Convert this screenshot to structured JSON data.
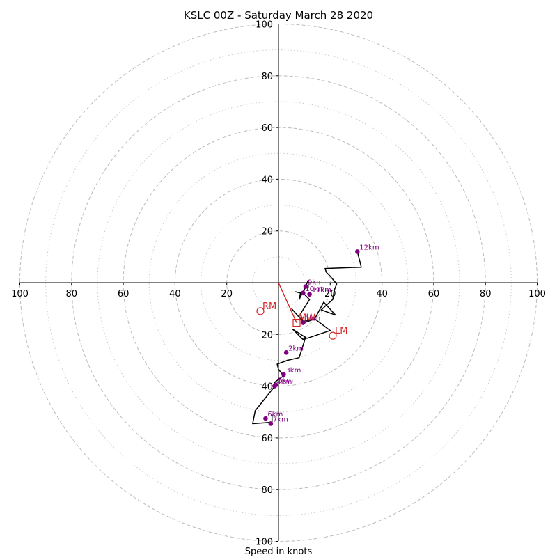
{
  "chart_data": {
    "type": "hodograph",
    "title": "KSLC 00Z - Saturday March 28 2020",
    "xlabel": "Speed in knots",
    "range": [
      -100,
      100
    ],
    "major_rings": [
      20,
      40,
      60,
      80,
      100
    ],
    "minor_rings": [
      10,
      30,
      50,
      70,
      90
    ],
    "tick_labels": [
      "100",
      "80",
      "60",
      "40",
      "20",
      "20",
      "40",
      "60",
      "80",
      "100"
    ],
    "y_tick_labels_upper": [
      "20",
      "40",
      "60",
      "80",
      "100"
    ],
    "y_tick_labels_lower": [
      "20",
      "40",
      "60",
      "80",
      "100"
    ],
    "colors": {
      "trace": "#000000",
      "height_markers": "#800080",
      "storm_motion": "#d62728",
      "major_ring": "#bbbbbb",
      "minor_ring": "#cccccc"
    },
    "wind_trace": [
      [
        6.5,
        -3.5
      ],
      [
        8.5,
        -4
      ],
      [
        8,
        -6.5
      ],
      [
        10.5,
        -1.5
      ],
      [
        11.5,
        -2
      ],
      [
        11.5,
        1
      ],
      [
        9.5,
        -4
      ],
      [
        12,
        -6.5
      ],
      [
        8.5,
        -12
      ],
      [
        9.5,
        -15
      ],
      [
        14,
        -14
      ],
      [
        17.5,
        -7.5
      ],
      [
        22,
        -12.5
      ],
      [
        16.5,
        -10.5
      ],
      [
        21,
        -6.5
      ],
      [
        21.5,
        -3
      ],
      [
        22.5,
        -0.5
      ],
      [
        20,
        2.5
      ],
      [
        18.5,
        4
      ],
      [
        18,
        5.5
      ],
      [
        32,
        6
      ],
      [
        30.5,
        12
      ]
    ],
    "wind_trace_low": [
      [
        5,
        -10
      ],
      [
        9.5,
        -15
      ],
      [
        10,
        -15.5
      ],
      [
        14,
        -14
      ],
      [
        20,
        -18.5
      ],
      [
        11,
        -21.5
      ],
      [
        5.5,
        -18
      ],
      [
        9.5,
        -22
      ],
      [
        10.5,
        -21
      ],
      [
        8,
        -29
      ],
      [
        3.5,
        -30
      ],
      [
        -0.5,
        -31.5
      ],
      [
        0,
        -33.5
      ],
      [
        2,
        -36
      ],
      [
        -1.5,
        -38.5
      ],
      [
        -1,
        -39.5
      ],
      [
        -9,
        -49.5
      ],
      [
        -10,
        -54.5
      ],
      [
        -3,
        -54
      ],
      [
        -2.5,
        -55
      ],
      [
        -2.5,
        -51
      ]
    ],
    "height_markers": [
      {
        "label": "12km",
        "u": 30.5,
        "v": 12
      },
      {
        "label": "9km",
        "u": 10.5,
        "v": -1.5
      },
      {
        "label": "10km",
        "u": 9.5,
        "v": -4
      },
      {
        "label": "11km",
        "u": 12,
        "v": -4.5
      },
      {
        "label": "1km",
        "u": 9.5,
        "v": -15.5
      },
      {
        "label": "2km",
        "u": 3,
        "v": -27
      },
      {
        "label": "3km",
        "u": 2,
        "v": -35.5
      },
      {
        "label": "5km",
        "u": -1,
        "v": -39.5
      },
      {
        "label": "4km",
        "u": -1.5,
        "v": -40
      },
      {
        "label": "6km",
        "u": -5,
        "v": -52.5
      },
      {
        "label": "7km",
        "u": -3,
        "v": -54.5
      }
    ],
    "storm_motion": [
      {
        "label": "RM",
        "u": -7,
        "v": -11,
        "marker": "circle"
      },
      {
        "label": "LM",
        "u": 21,
        "v": -20.5,
        "marker": "circle"
      },
      {
        "label": "MW",
        "u": 7,
        "v": -15.5,
        "marker": "square"
      }
    ],
    "shear_vector": {
      "from": [
        0,
        0
      ],
      "to": [
        7,
        -15.5
      ]
    }
  }
}
